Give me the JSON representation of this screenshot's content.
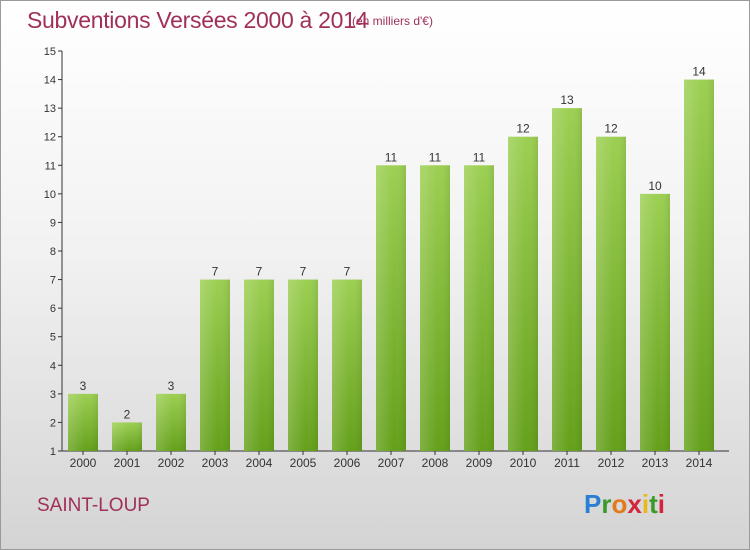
{
  "header": {
    "title": "Subventions Versées 2000 à 2014",
    "subtitle": "(en milliers d'€)"
  },
  "footer": {
    "commune": "SAINT-LOUP",
    "logo_text": "Proxiti"
  },
  "colors": {
    "title": "#a0305a",
    "bar_light": "#9ccf52",
    "bar_dark": "#64a01a",
    "logo_letters": [
      "#2a7fd4",
      "#3a9a2a",
      "#e07a1a",
      "#d4243c",
      "#e8b818",
      "#3a9a2a",
      "#d4243c"
    ]
  },
  "chart_data": {
    "type": "bar",
    "categories": [
      "2000",
      "2001",
      "2002",
      "2003",
      "2004",
      "2005",
      "2006",
      "2007",
      "2008",
      "2009",
      "2010",
      "2011",
      "2012",
      "2013",
      "2014"
    ],
    "values": [
      3,
      2,
      3,
      7,
      7,
      7,
      7,
      11,
      11,
      11,
      12,
      13,
      12,
      10,
      14
    ],
    "title": "Subventions Versées 2000 à 2014",
    "ylim": [
      1,
      15
    ],
    "yticks": [
      1,
      2,
      3,
      4,
      5,
      6,
      7,
      8,
      9,
      10,
      11,
      12,
      13,
      14,
      15
    ],
    "grid": false,
    "legend": "none"
  }
}
